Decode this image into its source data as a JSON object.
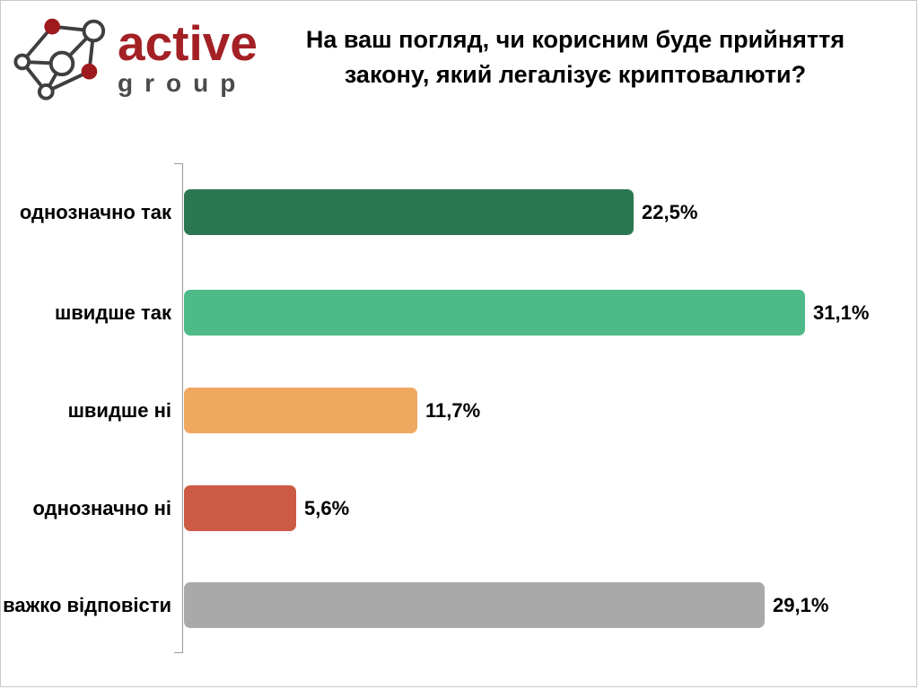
{
  "page": {
    "background": "#ffffff",
    "border_color": "#c8c8c8"
  },
  "logo": {
    "brand": "active",
    "sub": "group",
    "brand_color": "#a32024",
    "sub_color": "#4a4a4a",
    "icon": {
      "name": "network-graph-logo",
      "line_color": "#3f3f42",
      "node_fill_color": "#9e1a1c",
      "node_outline_color": "#3f3f42"
    }
  },
  "title": {
    "line1": "На ваш погляд, чи корисним буде прийняття",
    "line2": "закону, який легалізує криптовалюти?"
  },
  "chart_data": {
    "type": "bar",
    "orientation": "horizontal",
    "title": "На ваш погляд, чи корисним буде прийняття закону, який легалізує криптовалюти?",
    "categories": [
      "однозначно так",
      "швидше так",
      "швидше ні",
      "однозначно ні",
      "важко відповісти"
    ],
    "values": [
      22.5,
      31.1,
      11.7,
      5.6,
      29.1
    ],
    "value_labels": [
      "22,5%",
      "31,1%",
      "11,7%",
      "5,6%",
      "29,1%"
    ],
    "bar_colors": [
      "#2b7751",
      "#4eba87",
      "#f0a75f",
      "#cd5a45",
      "#a9a9a9"
    ],
    "xlim": [
      0,
      32
    ],
    "grid": false,
    "legend": false,
    "axis_color": "#999999",
    "label_color": "#000000"
  }
}
